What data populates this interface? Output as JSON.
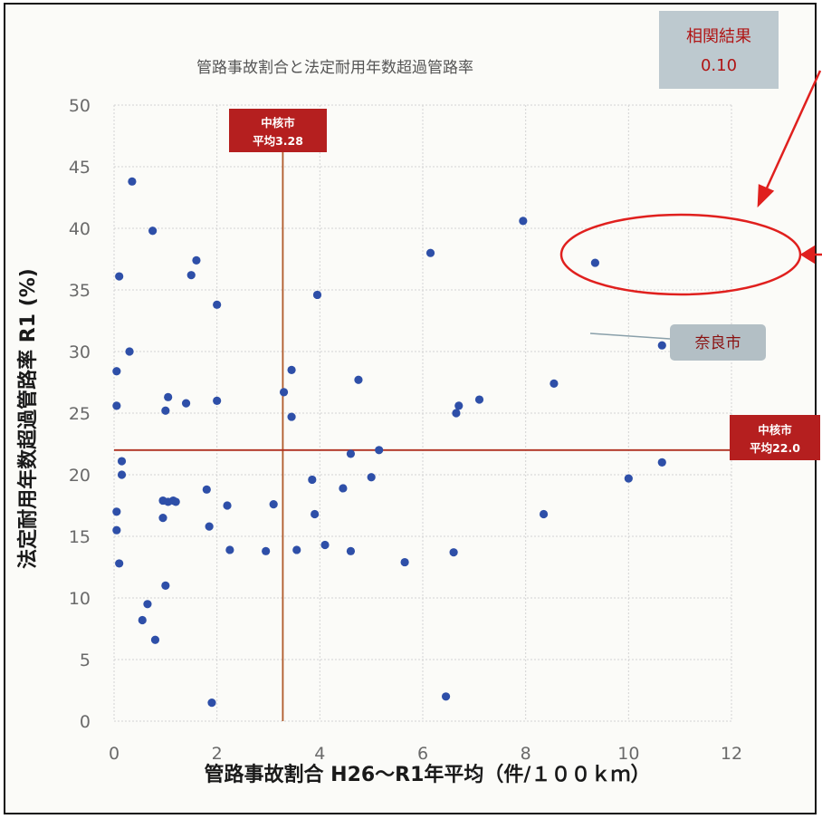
{
  "chart_data": {
    "type": "scatter",
    "title": "管路事故割合と法定耐用年数超過管路率",
    "xlabel": "管路事故割合 H26～R1年平均（件/１００ｋｍ）",
    "ylabel": "法定耐用年数超過管路率 R1 (%)",
    "xlim": [
      0,
      12
    ],
    "ylim": [
      0,
      50
    ],
    "xticks": [
      0,
      2,
      4,
      6,
      8,
      10,
      12
    ],
    "yticks": [
      0,
      5,
      10,
      15,
      20,
      25,
      30,
      35,
      40,
      45,
      50
    ],
    "grid": true,
    "correlation": {
      "label": "相関結果",
      "value": "0.10"
    },
    "reference_lines": [
      {
        "axis": "x",
        "value": 3.28,
        "label_line1": "中核市",
        "label_line2": "平均3.28"
      },
      {
        "axis": "y",
        "value": 22.0,
        "label_line1": "中核市",
        "label_line2": "平均22.0"
      }
    ],
    "highlight": {
      "label": "奈良市",
      "x": 9.35,
      "y": 37.2
    },
    "points": [
      {
        "x": 0.05,
        "y": 28.4
      },
      {
        "x": 0.05,
        "y": 25.6
      },
      {
        "x": 0.1,
        "y": 36.1
      },
      {
        "x": 0.15,
        "y": 21.1
      },
      {
        "x": 0.15,
        "y": 20.0
      },
      {
        "x": 0.05,
        "y": 17.0
      },
      {
        "x": 0.05,
        "y": 15.5
      },
      {
        "x": 0.1,
        "y": 12.8
      },
      {
        "x": 0.35,
        "y": 43.8
      },
      {
        "x": 0.3,
        "y": 30.0
      },
      {
        "x": 0.55,
        "y": 8.2
      },
      {
        "x": 0.65,
        "y": 9.5
      },
      {
        "x": 0.75,
        "y": 39.8
      },
      {
        "x": 0.8,
        "y": 6.6
      },
      {
        "x": 0.95,
        "y": 16.5
      },
      {
        "x": 0.95,
        "y": 17.9
      },
      {
        "x": 1.0,
        "y": 11.0
      },
      {
        "x": 1.0,
        "y": 25.2
      },
      {
        "x": 1.05,
        "y": 26.3
      },
      {
        "x": 1.05,
        "y": 17.8
      },
      {
        "x": 1.15,
        "y": 17.9
      },
      {
        "x": 1.2,
        "y": 17.8
      },
      {
        "x": 1.4,
        "y": 25.8
      },
      {
        "x": 1.5,
        "y": 36.2
      },
      {
        "x": 1.6,
        "y": 37.4
      },
      {
        "x": 1.8,
        "y": 18.8
      },
      {
        "x": 1.85,
        "y": 15.8
      },
      {
        "x": 1.9,
        "y": 1.5
      },
      {
        "x": 2.0,
        "y": 33.8
      },
      {
        "x": 2.0,
        "y": 26.0
      },
      {
        "x": 2.2,
        "y": 17.5
      },
      {
        "x": 2.25,
        "y": 13.9
      },
      {
        "x": 2.95,
        "y": 13.8
      },
      {
        "x": 3.1,
        "y": 17.6
      },
      {
        "x": 3.3,
        "y": 26.7
      },
      {
        "x": 3.45,
        "y": 24.7
      },
      {
        "x": 3.45,
        "y": 28.5
      },
      {
        "x": 3.55,
        "y": 13.9
      },
      {
        "x": 3.85,
        "y": 19.6
      },
      {
        "x": 3.9,
        "y": 16.8
      },
      {
        "x": 3.95,
        "y": 34.6
      },
      {
        "x": 4.1,
        "y": 14.3
      },
      {
        "x": 4.45,
        "y": 18.9
      },
      {
        "x": 4.6,
        "y": 21.7
      },
      {
        "x": 4.6,
        "y": 13.8
      },
      {
        "x": 4.75,
        "y": 27.7
      },
      {
        "x": 5.0,
        "y": 19.8
      },
      {
        "x": 5.15,
        "y": 22.0
      },
      {
        "x": 5.65,
        "y": 12.9
      },
      {
        "x": 6.15,
        "y": 38.0
      },
      {
        "x": 6.45,
        "y": 2.0
      },
      {
        "x": 6.6,
        "y": 13.7
      },
      {
        "x": 6.65,
        "y": 25.0
      },
      {
        "x": 6.7,
        "y": 25.6
      },
      {
        "x": 7.1,
        "y": 26.1
      },
      {
        "x": 7.95,
        "y": 40.6
      },
      {
        "x": 8.35,
        "y": 16.8
      },
      {
        "x": 8.55,
        "y": 27.4
      },
      {
        "x": 10.0,
        "y": 19.7
      },
      {
        "x": 10.65,
        "y": 30.5
      },
      {
        "x": 10.65,
        "y": 21.0
      }
    ]
  }
}
